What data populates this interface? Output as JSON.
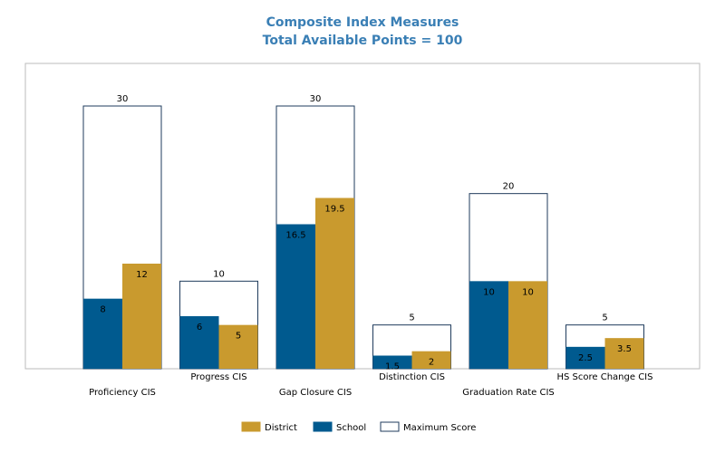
{
  "chart_data": {
    "type": "bar",
    "title": "Composite Index Measures",
    "subtitle": "Total Available Points = 100",
    "categories": [
      "Proficiency CIS",
      "Progress CIS",
      "Gap Closure CIS",
      "Distinction CIS",
      "Graduation Rate CIS",
      "HS Score Change CIS"
    ],
    "series": [
      {
        "name": "School",
        "values": [
          8,
          6,
          16.5,
          1.5,
          10,
          2.5
        ]
      },
      {
        "name": "District",
        "values": [
          12,
          5,
          19.5,
          2,
          10,
          3.5
        ]
      },
      {
        "name": "Maximum Score",
        "values": [
          30,
          10,
          30,
          5,
          20,
          5
        ]
      }
    ],
    "ylim": [
      0,
      30
    ],
    "grid": false,
    "legend_position": "bottom",
    "colors": {
      "School": "#005a8f",
      "District": "#c99a2e",
      "Maximum Score": "#ffffff",
      "max_border": "#1f3b5c",
      "title": "#3a7fb5",
      "plot_border": "#bbbbbb"
    }
  }
}
